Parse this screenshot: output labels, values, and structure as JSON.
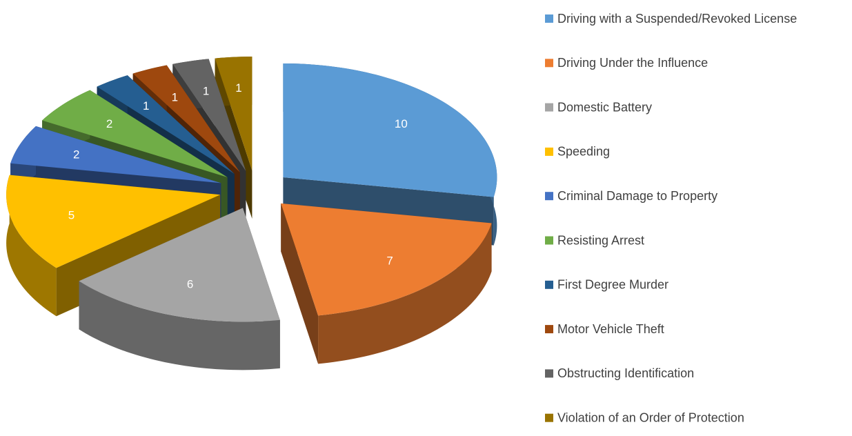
{
  "chart_data": {
    "type": "pie3d",
    "categories": [
      "Driving with a Suspended/Revoked License",
      "Driving Under the Influence",
      "Domestic Battery",
      "Speeding",
      "Criminal Damage to Property",
      "Resisting Arrest",
      "First Degree Murder",
      "Motor Vehicle Theft",
      "Obstructing Identification",
      "Violation of an Order of Protection"
    ],
    "values": [
      10,
      7,
      6,
      5,
      2,
      2,
      1,
      1,
      1,
      1
    ],
    "colors": [
      "#5b9bd5",
      "#ed7d31",
      "#a5a5a5",
      "#ffc000",
      "#4472c4",
      "#70ad47",
      "#255e91",
      "#9e480e",
      "#636363",
      "#997300"
    ],
    "legend": "right"
  }
}
